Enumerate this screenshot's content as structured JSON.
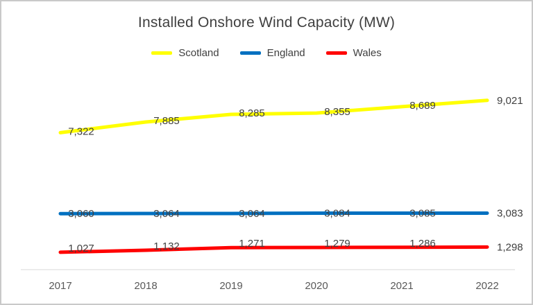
{
  "chart_data": {
    "type": "line",
    "title": "Installed Onshore Wind Capacity (MW)",
    "categories": [
      "2017",
      "2018",
      "2019",
      "2020",
      "2021",
      "2022"
    ],
    "series": [
      {
        "name": "Scotland",
        "color": "#FFFF00",
        "values": [
          7322,
          7885,
          8285,
          8355,
          8689,
          9021
        ]
      },
      {
        "name": "England",
        "color": "#0070C0",
        "values": [
          3060,
          3064,
          3064,
          3084,
          3085,
          3083
        ]
      },
      {
        "name": "Wales",
        "color": "#FF0000",
        "values": [
          1027,
          1132,
          1271,
          1279,
          1286,
          1298
        ]
      }
    ],
    "ylim": [
      0,
      10000
    ],
    "grid": false,
    "legend_position": "top",
    "data_labels": true,
    "xlabel": "",
    "ylabel": "",
    "axis_line_color": "#d9d9d9",
    "label_color": "#404040",
    "tick_color": "#595959"
  }
}
